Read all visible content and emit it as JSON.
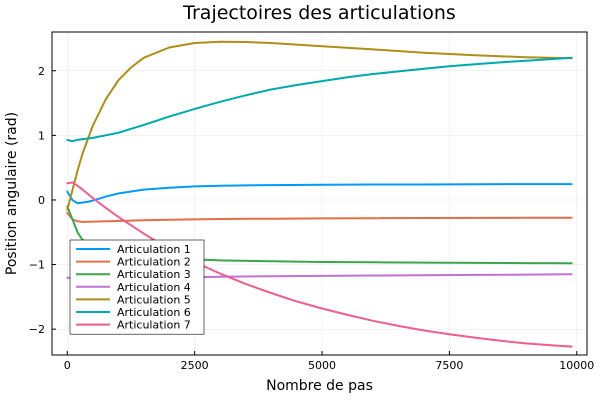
{
  "chart_data": {
    "type": "line",
    "title": "Trajectoires des articulations",
    "xlabel": "Nombre de pas",
    "ylabel": "Position angulaire (rad)",
    "xlim": [
      -300,
      10200
    ],
    "ylim": [
      -2.4,
      2.6
    ],
    "xticks": [
      0,
      2500,
      5000,
      7500,
      10000
    ],
    "yticks": [
      -2,
      -1,
      0,
      1,
      2
    ],
    "grid": true,
    "legend_position": "bottom-left",
    "series": [
      {
        "name": "Articulation 1",
        "color": "#009af9",
        "x": [
          0,
          100,
          200,
          300,
          400,
          500,
          750,
          1000,
          1500,
          2000,
          2500,
          3000,
          4000,
          5000,
          6000,
          7000,
          8000,
          9000,
          9900
        ],
        "y": [
          0.13,
          0.0,
          -0.05,
          -0.04,
          -0.03,
          -0.01,
          0.05,
          0.1,
          0.16,
          0.19,
          0.21,
          0.22,
          0.23,
          0.235,
          0.24,
          0.24,
          0.243,
          0.245,
          0.245
        ]
      },
      {
        "name": "Articulation 2",
        "color": "#e26f46",
        "x": [
          0,
          100,
          200,
          300,
          500,
          1000,
          1500,
          2000,
          3000,
          4000,
          5000,
          6000,
          7000,
          8000,
          9000,
          9900
        ],
        "y": [
          -0.2,
          -0.3,
          -0.33,
          -0.34,
          -0.335,
          -0.325,
          -0.315,
          -0.305,
          -0.295,
          -0.29,
          -0.285,
          -0.283,
          -0.28,
          -0.278,
          -0.276,
          -0.275
        ]
      },
      {
        "name": "Articulation 3",
        "color": "#3da44d",
        "x": [
          0,
          100,
          200,
          300,
          500,
          750,
          1000,
          1500,
          2000,
          2500,
          3000,
          4000,
          5000,
          6000,
          7000,
          8000,
          9000,
          9900
        ],
        "y": [
          -0.1,
          -0.3,
          -0.5,
          -0.62,
          -0.72,
          -0.79,
          -0.83,
          -0.87,
          -0.9,
          -0.92,
          -0.935,
          -0.95,
          -0.96,
          -0.965,
          -0.97,
          -0.975,
          -0.978,
          -0.98
        ]
      },
      {
        "name": "Articulation 4",
        "color": "#c271d2",
        "x": [
          0,
          100,
          200,
          500,
          1000,
          1500,
          2000,
          2500,
          3000,
          4000,
          5000,
          6000,
          7000,
          8000,
          9000,
          9900
        ],
        "y": [
          -1.2,
          -1.22,
          -1.23,
          -1.225,
          -1.215,
          -1.21,
          -1.2,
          -1.195,
          -1.19,
          -1.18,
          -1.175,
          -1.17,
          -1.165,
          -1.16,
          -1.155,
          -1.15
        ]
      },
      {
        "name": "Articulation 5",
        "color": "#ac8e18",
        "x": [
          0,
          100,
          200,
          300,
          500,
          750,
          1000,
          1250,
          1500,
          2000,
          2500,
          3000,
          3500,
          4000,
          5000,
          6000,
          7000,
          8000,
          9000,
          9900
        ],
        "y": [
          -0.15,
          0.15,
          0.45,
          0.72,
          1.15,
          1.55,
          1.85,
          2.05,
          2.2,
          2.36,
          2.43,
          2.45,
          2.445,
          2.43,
          2.38,
          2.33,
          2.28,
          2.24,
          2.21,
          2.195
        ]
      },
      {
        "name": "Articulation 6",
        "color": "#00a9ad",
        "x": [
          0,
          100,
          200,
          500,
          1000,
          1500,
          2000,
          2500,
          3000,
          3500,
          4000,
          4500,
          5000,
          5500,
          6000,
          6500,
          7000,
          7500,
          8000,
          8500,
          9000,
          9500,
          9900
        ],
        "y": [
          0.93,
          0.91,
          0.93,
          0.96,
          1.04,
          1.16,
          1.29,
          1.41,
          1.52,
          1.62,
          1.71,
          1.78,
          1.84,
          1.9,
          1.95,
          1.99,
          2.03,
          2.07,
          2.1,
          2.13,
          2.155,
          2.18,
          2.2
        ]
      },
      {
        "name": "Articulation 7",
        "color": "#ed5d92",
        "x": [
          0,
          100,
          200,
          300,
          500,
          750,
          1000,
          1500,
          2000,
          2500,
          3000,
          3500,
          4000,
          4500,
          5000,
          5500,
          6000,
          6500,
          7000,
          7500,
          8000,
          8500,
          9000,
          9500,
          9900
        ],
        "y": [
          0.26,
          0.27,
          0.22,
          0.16,
          0.03,
          -0.12,
          -0.26,
          -0.52,
          -0.76,
          -0.96,
          -1.14,
          -1.3,
          -1.44,
          -1.57,
          -1.68,
          -1.78,
          -1.87,
          -1.95,
          -2.02,
          -2.08,
          -2.13,
          -2.18,
          -2.22,
          -2.25,
          -2.27
        ]
      }
    ]
  }
}
